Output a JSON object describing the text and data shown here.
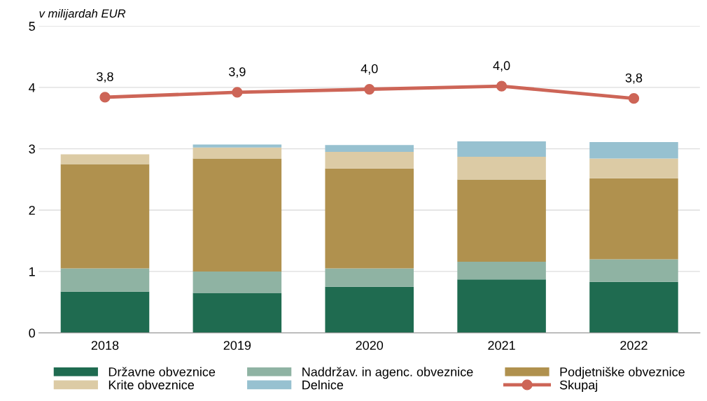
{
  "chart_data": {
    "type": "bar",
    "stacked": true,
    "ylabel": "v milijardah EUR",
    "categories": [
      "2018",
      "2019",
      "2020",
      "2021",
      "2022"
    ],
    "series": [
      {
        "name": "Državne obveznice",
        "color": "#1f6b50",
        "values": [
          0.67,
          0.65,
          0.75,
          0.87,
          0.83
        ]
      },
      {
        "name": "Naddržav. in agenc. obveznice",
        "color": "#8fb3a3",
        "values": [
          0.38,
          0.35,
          0.3,
          0.29,
          0.37
        ]
      },
      {
        "name": "Podjetniške obveznice",
        "color": "#b0914e",
        "values": [
          1.7,
          1.84,
          1.63,
          1.34,
          1.32
        ]
      },
      {
        "name": "Krite obveznice",
        "color": "#dccba5",
        "values": [
          0.16,
          0.18,
          0.27,
          0.37,
          0.32
        ]
      },
      {
        "name": "Delnice",
        "color": "#97c1d0",
        "values": [
          0,
          0.05,
          0.11,
          0.25,
          0.27
        ]
      },
      {
        "name": "Skupaj",
        "type": "line",
        "color": "#cd6557",
        "marker": "circle",
        "values": [
          3.84,
          3.92,
          3.97,
          4.02,
          3.82
        ],
        "value_labels": [
          "3,8",
          "3,9",
          "4,0",
          "4,0",
          "3,8"
        ]
      }
    ],
    "ylim": [
      0,
      5
    ],
    "yticks": [
      0,
      1,
      2,
      3,
      4,
      5
    ],
    "grid": "y",
    "legend": "bottom"
  }
}
